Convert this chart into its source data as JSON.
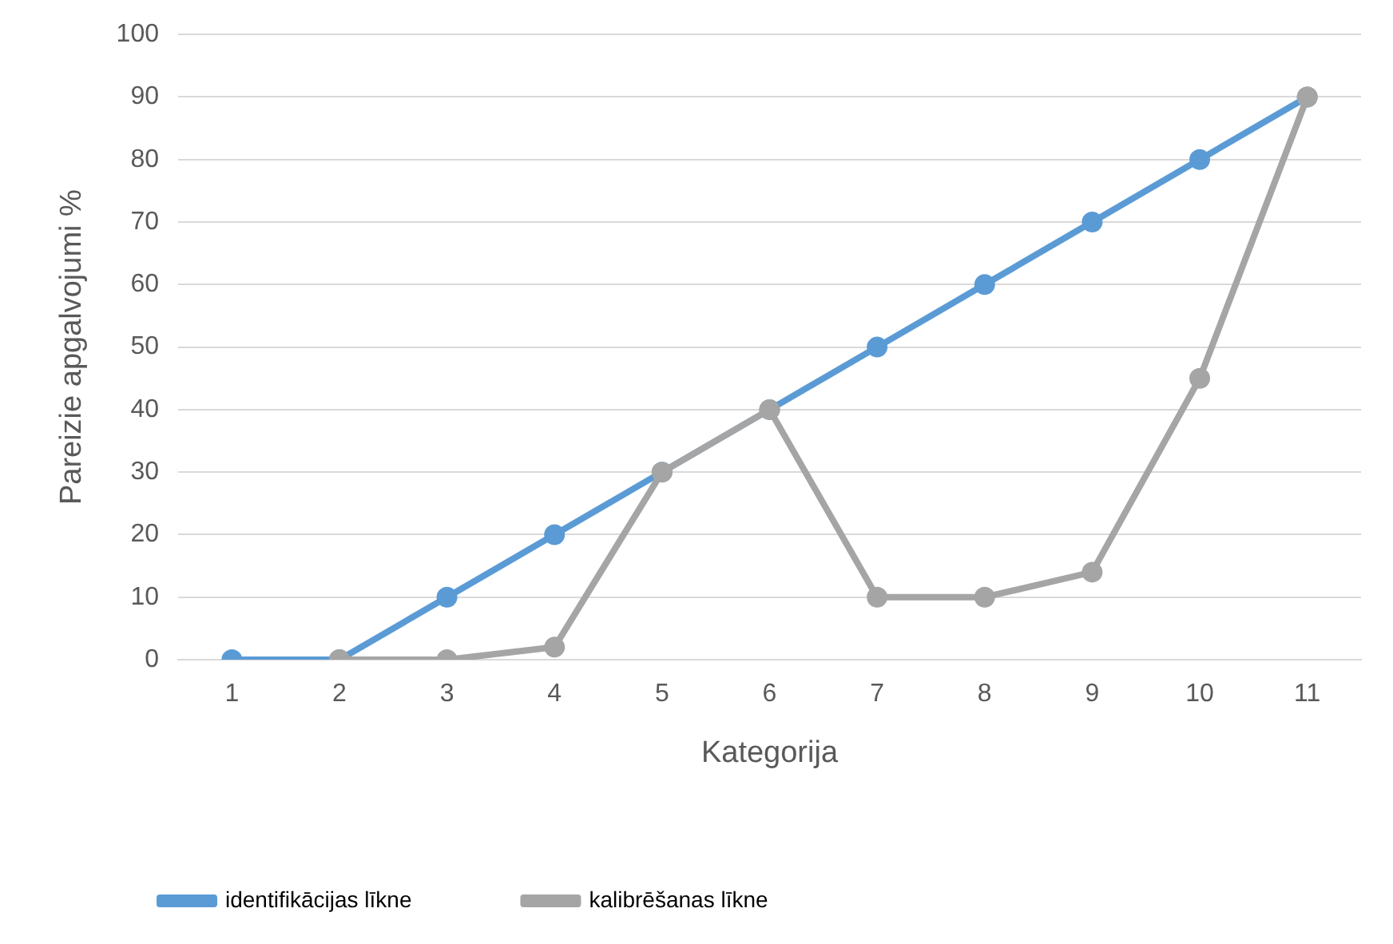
{
  "chart_data": {
    "type": "line",
    "xlabel": "Kategorija",
    "ylabel": "Pareizie apgalvojumi %",
    "categories": [
      "1",
      "2",
      "3",
      "4",
      "5",
      "6",
      "7",
      "8",
      "9",
      "10",
      "11"
    ],
    "series": [
      {
        "name": "identifikācijas līkne",
        "color": "#5b9bd5",
        "values": [
          0,
          0,
          10,
          20,
          30,
          40,
          50,
          60,
          70,
          80,
          90
        ]
      },
      {
        "name": "kalibrēšanas līkne",
        "color": "#a5a5a5",
        "values": [
          null,
          0,
          0,
          2,
          30,
          40,
          10,
          10,
          14,
          45,
          90
        ]
      }
    ],
    "ylim": [
      0,
      100
    ],
    "yticks": [
      0,
      10,
      20,
      30,
      40,
      50,
      60,
      70,
      80,
      90,
      100
    ],
    "grid": "y",
    "legend": "bottom",
    "marker": "circle",
    "line_style": "solid"
  }
}
